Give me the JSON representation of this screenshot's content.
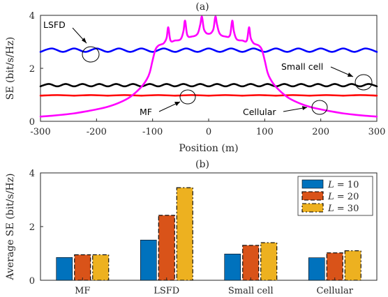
{
  "chart_data": [
    {
      "type": "line",
      "title": "(a)",
      "xlabel": "Position (m)",
      "ylabel": "SE (bit/s/Hz)",
      "xlim": [
        -300,
        300
      ],
      "ylim": [
        0,
        4
      ],
      "xticks": [
        "-300",
        "-200",
        "-100",
        "0",
        "100",
        "200",
        "300"
      ],
      "yticks": [
        "0",
        "2",
        "4"
      ],
      "grid": false,
      "series": [
        {
          "name": "LSFD",
          "color": "#0000FF",
          "x": [
            -300,
            -280,
            -260,
            -240,
            -220,
            -200,
            -180,
            -160,
            -140,
            -120,
            -100,
            -80,
            -60,
            -40,
            -20,
            0,
            20,
            40,
            60,
            80,
            100,
            120,
            140,
            160,
            180,
            200,
            220,
            240,
            260,
            280,
            300
          ],
          "y": [
            2.62,
            2.75,
            2.62,
            2.75,
            2.62,
            2.75,
            2.62,
            2.75,
            2.62,
            2.75,
            2.62,
            2.75,
            2.62,
            2.75,
            2.62,
            2.75,
            2.62,
            2.75,
            2.62,
            2.75,
            2.62,
            2.75,
            2.62,
            2.75,
            2.62,
            2.75,
            2.62,
            2.75,
            2.62,
            2.75,
            2.62
          ]
        },
        {
          "name": "Small cell",
          "color": "#000000",
          "x": [
            -300,
            -285,
            -270,
            -255,
            -240,
            -225,
            -210,
            -195,
            -180,
            -165,
            -150,
            -135,
            -120,
            -105,
            -90,
            -75,
            -60,
            -45,
            -30,
            -15,
            0,
            15,
            30,
            45,
            60,
            75,
            90,
            105,
            120,
            135,
            150,
            165,
            180,
            195,
            210,
            225,
            240,
            255,
            270,
            285,
            300
          ],
          "y": [
            1.32,
            1.41,
            1.32,
            1.41,
            1.32,
            1.41,
            1.32,
            1.41,
            1.32,
            1.41,
            1.32,
            1.41,
            1.32,
            1.41,
            1.32,
            1.41,
            1.32,
            1.41,
            1.32,
            1.41,
            1.32,
            1.41,
            1.32,
            1.41,
            1.32,
            1.41,
            1.32,
            1.41,
            1.32,
            1.41,
            1.32,
            1.41,
            1.32,
            1.41,
            1.32,
            1.41,
            1.32,
            1.41,
            1.32,
            1.41,
            1.32
          ]
        },
        {
          "name": "MF",
          "color": "#FF0000",
          "x": [
            -300,
            -270,
            -240,
            -210,
            -180,
            -150,
            -120,
            -90,
            -60,
            -30,
            0,
            30,
            60,
            90,
            120,
            150,
            180,
            210,
            240,
            270,
            300
          ],
          "y": [
            0.97,
            0.99,
            0.97,
            0.99,
            0.97,
            0.99,
            0.97,
            0.99,
            0.97,
            0.99,
            0.97,
            0.99,
            0.97,
            0.99,
            0.97,
            0.99,
            0.97,
            0.99,
            0.97,
            0.99,
            0.97
          ]
        },
        {
          "name": "Cellular",
          "color": "#FF00FF",
          "x": [
            -300,
            -280,
            -260,
            -240,
            -220,
            -200,
            -180,
            -160,
            -140,
            -120,
            -110,
            -105,
            -100,
            -95,
            -90,
            -85,
            -80,
            -75,
            -72,
            -68,
            -60,
            -50,
            -45,
            -42,
            -38,
            -30,
            -20,
            -15,
            -12,
            -8,
            0,
            8,
            12,
            15,
            20,
            30,
            38,
            42,
            45,
            50,
            60,
            68,
            72,
            75,
            80,
            85,
            90,
            95,
            100,
            105,
            110,
            120,
            140,
            160,
            180,
            200,
            220,
            240,
            260,
            280,
            300
          ],
          "y": [
            0.18,
            0.21,
            0.25,
            0.3,
            0.37,
            0.45,
            0.55,
            0.7,
            0.92,
            1.3,
            1.6,
            1.85,
            2.3,
            2.7,
            2.85,
            2.9,
            2.95,
            3.15,
            3.55,
            3.05,
            3.05,
            3.1,
            3.4,
            3.8,
            3.25,
            3.2,
            3.3,
            3.65,
            3.95,
            3.45,
            3.3,
            3.45,
            3.95,
            3.65,
            3.3,
            3.2,
            3.25,
            3.8,
            3.4,
            3.1,
            3.05,
            3.05,
            3.55,
            3.15,
            2.95,
            2.9,
            2.85,
            2.7,
            2.3,
            1.85,
            1.6,
            1.3,
            0.92,
            0.7,
            0.55,
            0.45,
            0.37,
            0.3,
            0.25,
            0.21,
            0.18
          ]
        }
      ],
      "annotations": [
        "LSFD",
        "Small cell",
        "MF",
        "Cellular"
      ]
    },
    {
      "type": "bar",
      "title": "(b)",
      "xlabel": "",
      "ylabel": "Average SE (bit/s/Hz)",
      "ylim": [
        0,
        4
      ],
      "yticks": [
        "0",
        "2",
        "4"
      ],
      "categories": [
        "MF",
        "LSFD",
        "Small cell",
        "Cellular"
      ],
      "legend": "top-right",
      "series": [
        {
          "name": "L = 10",
          "color": "#0072BD",
          "values": [
            0.85,
            1.5,
            0.98,
            0.84
          ]
        },
        {
          "name": "L = 20",
          "color": "#D95319",
          "values": [
            0.95,
            2.42,
            1.3,
            1.02
          ]
        },
        {
          "name": "L = 30",
          "color": "#EDB120",
          "values": [
            0.95,
            3.45,
            1.4,
            1.1
          ]
        }
      ]
    }
  ]
}
